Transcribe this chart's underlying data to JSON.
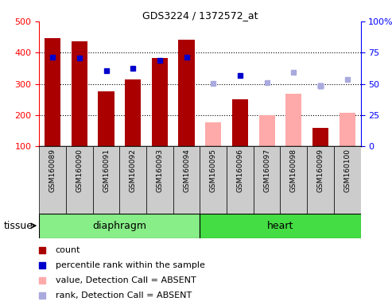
{
  "title": "GDS3224 / 1372572_at",
  "samples": [
    "GSM160089",
    "GSM160090",
    "GSM160091",
    "GSM160092",
    "GSM160093",
    "GSM160094",
    "GSM160095",
    "GSM160096",
    "GSM160097",
    "GSM160098",
    "GSM160099",
    "GSM160100"
  ],
  "groups": [
    "diaphragm",
    "diaphragm",
    "diaphragm",
    "diaphragm",
    "diaphragm",
    "diaphragm",
    "heart",
    "heart",
    "heart",
    "heart",
    "heart",
    "heart"
  ],
  "count_values": [
    447,
    435,
    276,
    314,
    382,
    440,
    null,
    250,
    null,
    null,
    160,
    null
  ],
  "count_absent": [
    null,
    null,
    null,
    null,
    null,
    null,
    177,
    null,
    200,
    268,
    null,
    208
  ],
  "rank_present_left": [
    386,
    384,
    341,
    349,
    374,
    385,
    null,
    326,
    null,
    null,
    293,
    null
  ],
  "rank_absent_left": [
    null,
    null,
    null,
    null,
    null,
    null,
    302,
    null,
    305,
    338,
    295,
    315
  ],
  "ylim_left": [
    100,
    500
  ],
  "ylim_right": [
    0,
    100
  ],
  "left_ticks": [
    100,
    200,
    300,
    400,
    500
  ],
  "right_ticks": [
    0,
    25,
    50,
    75,
    100
  ],
  "bar_width": 0.6,
  "color_count": "#aa0000",
  "color_count_absent": "#ffaaaa",
  "color_rank_present": "#0000cc",
  "color_rank_absent": "#aaaadd",
  "color_diaphragm": "#88ee88",
  "color_heart": "#44dd44",
  "grid_yticks": [
    200,
    300,
    400
  ],
  "legend_items": [
    {
      "label": "count",
      "color": "#aa0000"
    },
    {
      "label": "percentile rank within the sample",
      "color": "#0000cc"
    },
    {
      "label": "value, Detection Call = ABSENT",
      "color": "#ffaaaa"
    },
    {
      "label": "rank, Detection Call = ABSENT",
      "color": "#aaaadd"
    }
  ]
}
